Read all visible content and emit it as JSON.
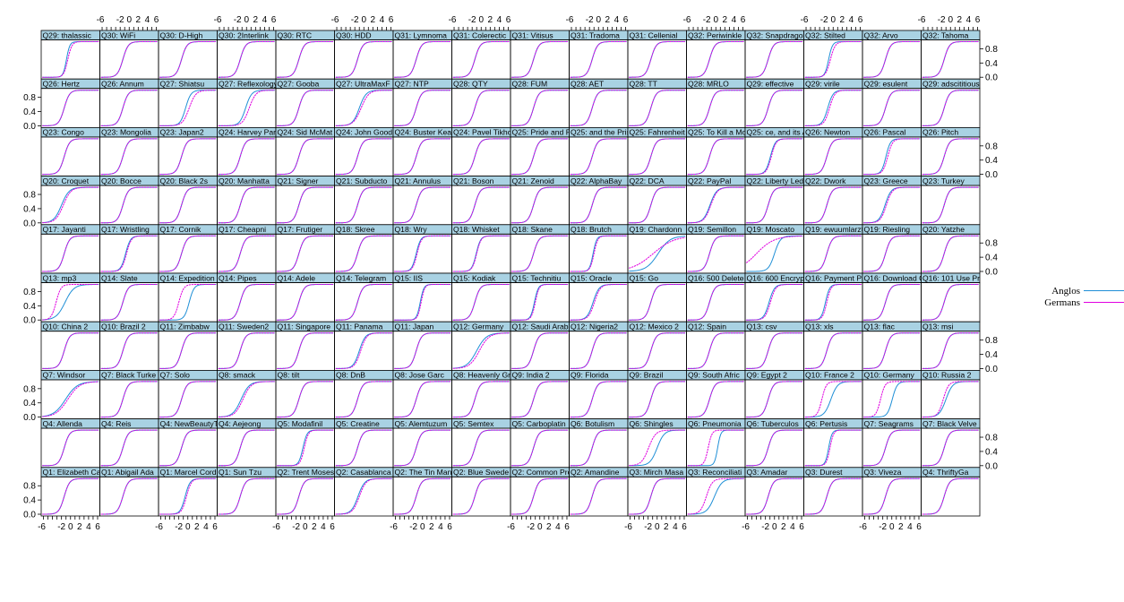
{
  "chart_data": {
    "type": "line",
    "layout": {
      "columns": 16,
      "rows": 10
    },
    "x_ticks": [
      "-6",
      "-2",
      "0",
      "2",
      "4",
      "6"
    ],
    "y_ticks": [
      "0.0",
      "0.4",
      "0.8"
    ],
    "xlim": [
      -6.5,
      6.5
    ],
    "ylim": [
      -0.05,
      1.05
    ],
    "legend": {
      "position": "right",
      "entries": [
        {
          "name": "Anglos",
          "color": "#1f8fd6"
        },
        {
          "name": "Germans",
          "color": "#e000e0"
        }
      ]
    },
    "strip_color": "#a9d2e3",
    "panels_rows_top_to_bottom": [
      [
        "Q29: thalassic",
        "Q30: WiFi",
        "Q30: D-High",
        "Q30: 2Interlink",
        "Q30: RTC",
        "Q30: HDD",
        "Q31: Lymnoma",
        "Q31: Colerectic",
        "Q31: Vitisus",
        "Q31: Tradoma",
        "Q31: Cellenial",
        "Q32: Periwinkle",
        "Q32: Snapdragon",
        "Q32: Stilted",
        "Q32: Arvo",
        "Q32: Tahoma"
      ],
      [
        "Q26: Hertz",
        "Q26: Annum",
        "Q27: Shiatsu",
        "Q27: Reflexology",
        "Q27: Gooba",
        "Q27: UltraMaxF",
        "Q27: NTP",
        "Q28: QTY",
        "Q28: FUM",
        "Q28: AET",
        "Q28: TT",
        "Q28: MRLO",
        "Q29: effective",
        "Q29: virile",
        "Q29: esulent",
        "Q29: adscititious"
      ],
      [
        "Q23: Congo",
        "Q23: Mongolia",
        "Q23: Japan2",
        "Q24: Harvey Par",
        "Q24: Sid McMat",
        "Q24: John Goodm",
        "Q24: Buster Kea",
        "Q24: Pavel Tikho",
        "Q25: Pride and Prej",
        "Q25: and the Pris",
        "Q25: Fahrenheit",
        "Q25: To Kill a Mocki",
        "Q25: ce, and its Ar",
        "Q26: Newton",
        "Q26: Pascal",
        "Q26: Pitch"
      ],
      [
        "Q20: Croquet",
        "Q20: Bocce",
        "Q20: Black 2s",
        "Q20: Manhatta",
        "Q21: Signer",
        "Q21: Subducto",
        "Q21: Annulus",
        "Q21: Boson",
        "Q21: Zenoid",
        "Q22: AlphaBay",
        "Q22: DCA",
        "Q22: PayPal",
        "Q22: Liberty Led",
        "Q22: Dwork",
        "Q23: Greece",
        "Q23: Turkey"
      ],
      [
        "Q17: Jayanti",
        "Q17: Wristling",
        "Q17: Cornik",
        "Q17: Cheapni",
        "Q17: Frutiger",
        "Q18: Skree",
        "Q18: Wry",
        "Q18: Whisket",
        "Q18: Skane",
        "Q18: Brutch",
        "Q19: Chardonn",
        "Q19: Semillon",
        "Q19: Moscato",
        "Q19: ewuumlarztn",
        "Q19: Riesling",
        "Q20: Yatzhe"
      ],
      [
        "Q13: mp3",
        "Q14: Slate",
        "Q14: Expedition",
        "Q14: Pipes",
        "Q14: Adele",
        "Q14: Telegram",
        "Q15: IIS",
        "Q15: Kodiak",
        "Q15: Technitiu",
        "Q15: Oracle",
        "Q15: Go",
        "Q16: 500 Delete",
        "Q16: 600 Encryp",
        "Q16: Payment Pro",
        "Q16: Download G",
        "Q16: 101 Use Pr"
      ],
      [
        "Q10: China 2",
        "Q10: Brazil 2",
        "Q11: Zimbabw",
        "Q11: Sweden2",
        "Q11: Singapore",
        "Q11: Panama",
        "Q11: Japan",
        "Q12: Germany",
        "Q12: Saudi Arab",
        "Q12: Nigeria2",
        "Q12: Mexico 2",
        "Q12: Spain",
        "Q13: csv",
        "Q13: xls",
        "Q13: flac",
        "Q13: msi"
      ],
      [
        "Q7: Windsor",
        "Q7: Black Turke",
        "Q7: Solo",
        "Q8: smack",
        "Q8: tilt",
        "Q8: DnB",
        "Q8: Jose Garc",
        "Q8: Heavenly Gr",
        "Q9: India 2",
        "Q9: Florida",
        "Q9: Brazil",
        "Q9: South Afric",
        "Q9: Egypt 2",
        "Q10: France 2",
        "Q10: Germany",
        "Q10: Russia 2"
      ],
      [
        "Q4: Allenda",
        "Q4: Reis",
        "Q4: NewBeautyT",
        "Q4: Aejeong",
        "Q5: Modafinil",
        "Q5: Creatine",
        "Q5: Alemtuzum",
        "Q5: Semtex",
        "Q5: Carboplatin",
        "Q6: Botulism",
        "Q6: Shingles",
        "Q6: Pneumonia",
        "Q6: Tuberculos",
        "Q6: Pertusis",
        "Q7: Seagrams",
        "Q7: Black Velve"
      ],
      [
        "Q1: Elizabeth Cady S",
        "Q1: Abigail Ada",
        "Q1: Marcel Cord",
        "Q1: Sun Tzu",
        "Q2: Trent Moses",
        "Q2: Casablanca",
        "Q2: The Tin Man",
        "Q2: Blue Swede S",
        "Q2: Common Pro",
        "Q2: Amandine",
        "Q3: Mirch Masa",
        "Q3: Reconciliati",
        "Q3: Amadar",
        "Q3: Durest",
        "Q3: Viveza",
        "Q4: ThriftyGa"
      ]
    ],
    "item_parameters_discrimination_difficulty": {
      "Q29: thalassic": {
        "Anglos": [
          1.6,
          -0.9
        ],
        "Germans": [
          1.3,
          -0.6
        ]
      },
      "Q32: Stilted": {
        "Anglos": [
          1.4,
          -1.0
        ],
        "Germans": [
          1.1,
          -0.6
        ]
      },
      "Q27: Shiatsu": {
        "Anglos": [
          1.0,
          -0.5
        ],
        "Germans": [
          0.8,
          0.3
        ]
      },
      "Q27: Reflexology": {
        "Anglos": [
          0.9,
          -0.2
        ],
        "Germans": [
          0.8,
          0.6
        ]
      },
      "Q27: UltraMaxF": {
        "Anglos": [
          0.8,
          -1.0
        ],
        "Germans": [
          0.7,
          -0.6
        ]
      },
      "Q29: virile": {
        "Anglos": [
          1.0,
          -1.2
        ],
        "Germans": [
          1.0,
          -0.8
        ]
      },
      "Q25: ce, and its Ar": {
        "Anglos": [
          1.1,
          -0.9
        ],
        "Germans": [
          1.1,
          -0.7
        ]
      },
      "Q26: Pascal": {
        "Anglos": [
          1.2,
          -1.3
        ],
        "Germans": [
          1.1,
          -0.9
        ]
      },
      "Q20: Croquet": {
        "Anglos": [
          0.7,
          -2.0
        ],
        "Germans": [
          0.7,
          -1.6
        ]
      },
      "Q22: PayPal": {
        "Anglos": [
          0.8,
          -1.3
        ],
        "Germans": [
          0.8,
          -1.1
        ]
      },
      "Q23: Greece": {
        "Anglos": [
          0.9,
          -1.5
        ],
        "Germans": [
          0.9,
          -1.2
        ]
      },
      "Q17: Wristling": {
        "Anglos": [
          1.1,
          -0.8
        ],
        "Germans": [
          1.1,
          -0.6
        ]
      },
      "Q18: Wry": {
        "Anglos": [
          1.2,
          -1.4
        ],
        "Germans": [
          1.2,
          -1.2
        ]
      },
      "Q18: Whisket": {
        "Anglos": [
          1.2,
          -1.1
        ],
        "Germans": [
          1.2,
          -1.0
        ]
      },
      "Q18: Brutch": {
        "Anglos": [
          1.5,
          -1.2
        ],
        "Germans": [
          1.4,
          -1.0
        ]
      },
      "Q19: Chardonn": {
        "Anglos": [
          0.45,
          0.2
        ],
        "Germans": [
          0.25,
          -0.9
        ]
      },
      "Q19: Moscato": {
        "Anglos": [
          0.9,
          0.0
        ],
        "Germans": [
          0.3,
          -4.0
        ]
      },
      "Q13: mp3": {
        "Anglos": [
          0.6,
          -1.2
        ],
        "Germans": [
          1.1,
          -3.2
        ]
      },
      "Q14: Expedition": {
        "Anglos": [
          1.1,
          0.3
        ],
        "Germans": [
          1.1,
          -2.0
        ]
      },
      "Q15: IIS": {
        "Anglos": [
          1.5,
          -0.5
        ],
        "Germans": [
          1.5,
          -0.3
        ]
      },
      "Q15: Technitiu": {
        "Anglos": [
          1.4,
          -1.2
        ],
        "Germans": [
          1.4,
          -1.0
        ]
      },
      "Q15: Oracle": {
        "Anglos": [
          0.9,
          -1.2
        ],
        "Germans": [
          0.9,
          -0.9
        ]
      },
      "Q16: 600 Encryp": {
        "Anglos": [
          1.0,
          -1.2
        ],
        "Germans": [
          1.0,
          -0.9
        ]
      },
      "Q16: Payment Pro": {
        "Anglos": [
          1.3,
          -1.7
        ],
        "Germans": [
          1.3,
          -1.4
        ]
      },
      "Q11: Panama": {
        "Anglos": [
          0.9,
          -1.0
        ],
        "Germans": [
          0.9,
          -0.7
        ]
      },
      "Q12: Germany": {
        "Anglos": [
          0.55,
          -1.0
        ],
        "Germans": [
          0.55,
          -0.4
        ]
      },
      "Q7: Windsor": {
        "Anglos": [
          0.45,
          -1.1
        ],
        "Germans": [
          0.45,
          -0.6
        ]
      },
      "Q8: smack": {
        "Anglos": [
          0.65,
          -1.2
        ],
        "Germans": [
          0.65,
          -0.8
        ]
      },
      "Q10: France 2": {
        "Anglos": [
          0.8,
          -0.5
        ],
        "Germans": [
          1.2,
          -2.5
        ]
      },
      "Q10: Germany": {
        "Anglos": [
          1.1,
          0.1
        ],
        "Germans": [
          1.2,
          -2.5
        ]
      },
      "Q10: Russia 2": {
        "Anglos": [
          0.8,
          -1.0
        ],
        "Germans": [
          1.0,
          -1.6
        ]
      },
      "Q5: Modafinil": {
        "Anglos": [
          1.3,
          -0.5
        ],
        "Germans": [
          1.3,
          -0.2
        ]
      },
      "Q6: Shingles": {
        "Anglos": [
          0.75,
          0.0
        ],
        "Germans": [
          0.75,
          -1.9
        ]
      },
      "Q6: Pneumonia": {
        "Anglos": [
          1.7,
          0.4
        ],
        "Germans": [
          1.4,
          -1.7
        ]
      },
      "Q6: Pertusis": {
        "Anglos": [
          1.6,
          -1.0
        ],
        "Germans": [
          1.5,
          -0.7
        ]
      },
      "Q1: Marcel Cord": {
        "Anglos": [
          1.1,
          -0.6
        ],
        "Germans": [
          1.1,
          -0.3
        ]
      },
      "Q2: Casablanca": {
        "Anglos": [
          0.8,
          -1.3
        ],
        "Germans": [
          0.8,
          -1.0
        ]
      },
      "Q3: Reconciliati": {
        "Anglos": [
          0.7,
          -0.3
        ],
        "Germans": [
          0.9,
          -2.1
        ]
      }
    },
    "default_item_parameters": {
      "discrimination": 1.0,
      "difficulty": -1.4
    }
  }
}
